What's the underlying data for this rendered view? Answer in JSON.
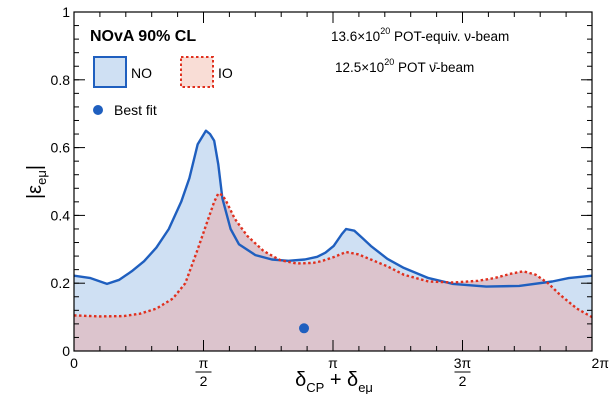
{
  "chart_data": {
    "type": "area",
    "title": "NOvA 90% CL",
    "annotations": [
      {
        "base": "13.6×10",
        "sup": "20",
        "rest": " POT-equiv. ν-beam"
      },
      {
        "base": "12.5×10",
        "sup": "20",
        "rest": " POT ν̄-beam"
      }
    ],
    "xlabel": {
      "main": "δ",
      "sub1": "CP",
      "mid": " + δ",
      "sub2": "eμ"
    },
    "ylabel": {
      "main": "|ε",
      "sub": "eμ",
      "end": "|"
    },
    "xlim": [
      0,
      6.2832
    ],
    "ylim": [
      0,
      1
    ],
    "x_ticks": [
      {
        "value": 0,
        "label": "0"
      },
      {
        "value": 1.5708,
        "num": "π",
        "den": "2"
      },
      {
        "value": 3.1416,
        "label": "π"
      },
      {
        "value": 4.7124,
        "num": "3π",
        "den": "2"
      },
      {
        "value": 6.2832,
        "label": "2π"
      }
    ],
    "y_ticks": [
      {
        "value": 0,
        "label": "0"
      },
      {
        "value": 0.2,
        "label": "0.2"
      },
      {
        "value": 0.4,
        "label": "0.4"
      },
      {
        "value": 0.6,
        "label": "0.6"
      },
      {
        "value": 0.8,
        "label": "0.8"
      },
      {
        "value": 1,
        "label": "1"
      }
    ],
    "legend_position": "top-left",
    "series": [
      {
        "name": "NO",
        "line_color": "#1f5fbf",
        "fill_color": "#cfe0f3",
        "line_style": "solid",
        "x": [
          0,
          0.2,
          0.4,
          0.55,
          0.7,
          0.85,
          1.0,
          1.15,
          1.3,
          1.4,
          1.5,
          1.6,
          1.65,
          1.7,
          1.75,
          1.8,
          1.9,
          2.0,
          2.2,
          2.4,
          2.6,
          2.8,
          2.95,
          3.05,
          3.15,
          3.25,
          3.3,
          3.4,
          3.5,
          3.6,
          3.8,
          4.0,
          4.3,
          4.6,
          5.0,
          5.4,
          5.8,
          6.0,
          6.2832
        ],
        "y": [
          0.222,
          0.215,
          0.198,
          0.21,
          0.235,
          0.265,
          0.305,
          0.36,
          0.44,
          0.51,
          0.61,
          0.65,
          0.64,
          0.62,
          0.55,
          0.45,
          0.36,
          0.315,
          0.283,
          0.27,
          0.266,
          0.27,
          0.278,
          0.29,
          0.31,
          0.345,
          0.36,
          0.355,
          0.333,
          0.31,
          0.272,
          0.245,
          0.215,
          0.198,
          0.19,
          0.192,
          0.205,
          0.215,
          0.222
        ]
      },
      {
        "name": "IO",
        "line_color": "#e0301e",
        "fill_color": "#f9ddd6",
        "line_style": "dotted",
        "x": [
          0,
          0.3,
          0.6,
          0.8,
          1.0,
          1.2,
          1.35,
          1.5,
          1.6,
          1.7,
          1.75,
          1.8,
          1.85,
          1.95,
          2.1,
          2.3,
          2.5,
          2.7,
          2.9,
          3.0,
          3.15,
          3.3,
          3.45,
          3.6,
          3.8,
          4.0,
          4.3,
          4.6,
          4.9,
          5.1,
          5.3,
          5.45,
          5.6,
          5.75,
          5.9,
          6.1,
          6.2832
        ],
        "y": [
          0.105,
          0.102,
          0.103,
          0.11,
          0.125,
          0.155,
          0.2,
          0.3,
          0.37,
          0.44,
          0.465,
          0.46,
          0.44,
          0.39,
          0.34,
          0.295,
          0.268,
          0.258,
          0.26,
          0.265,
          0.277,
          0.292,
          0.285,
          0.27,
          0.25,
          0.225,
          0.205,
          0.202,
          0.207,
          0.215,
          0.228,
          0.235,
          0.225,
          0.2,
          0.165,
          0.125,
          0.1
        ]
      }
    ],
    "best_fit": {
      "label": "Best fit",
      "x": 2.79,
      "y": 0.067,
      "color": "#1f5fbf"
    },
    "overlap_fill_color": "#dcc4cd"
  }
}
